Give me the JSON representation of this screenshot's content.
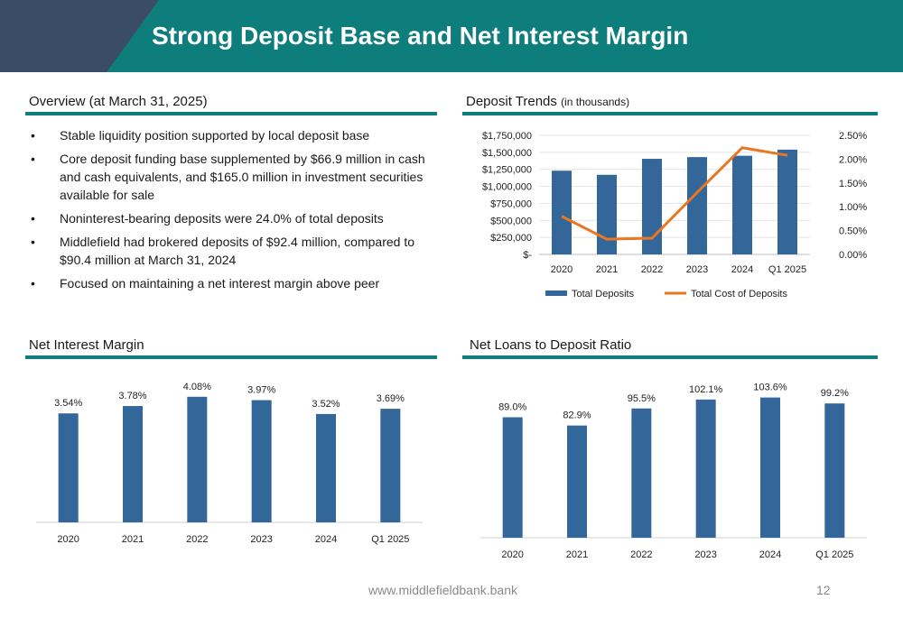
{
  "header": {
    "title": "Strong Deposit Base and Net Interest Margin"
  },
  "overview": {
    "title": "Overview (at March 31, 2025)",
    "bullets": [
      "Stable liquidity position supported by local deposit base",
      "Core deposit funding base supplemented by $66.9 million in cash and cash equivalents, and $165.0 million in investment securities available for sale",
      "Noninterest-bearing deposits were 24.0% of total deposits",
      "Middlefield had brokered deposits of $92.4 million, compared to $90.4 million at March 31, 2024",
      "Focused on maintaining a net interest margin above peer"
    ]
  },
  "colors": {
    "accent": "#0e7e7c",
    "bar": "#336699",
    "line": "#e87722",
    "corner": "#3b4d66"
  },
  "chart_data": [
    {
      "id": "deposit-trends",
      "type": "bar",
      "title": "Deposit Trends",
      "subtitle": "(in thousands)",
      "categories": [
        "2020",
        "2021",
        "2022",
        "2023",
        "2024",
        "Q1 2025"
      ],
      "series": [
        {
          "name": "Total Deposits",
          "type": "bar",
          "axis": "left",
          "values": [
            1230000,
            1170000,
            1405000,
            1430000,
            1450000,
            1540000
          ]
        },
        {
          "name": "Total Cost of Deposits",
          "type": "line",
          "axis": "right",
          "values": [
            0.8,
            0.32,
            0.34,
            1.3,
            2.24,
            2.08
          ]
        }
      ],
      "ylim": [
        0,
        1750000
      ],
      "y_ticks": [
        "$-",
        "$250,000",
        "$500,000",
        "$750,000",
        "$1,000,000",
        "$1,250,000",
        "$1,500,000",
        "$1,750,000"
      ],
      "y2lim": [
        0,
        2.5
      ],
      "y2_ticks": [
        "0.00%",
        "0.50%",
        "1.00%",
        "1.50%",
        "2.00%",
        "2.50%"
      ],
      "grid": true,
      "legend": "bottom"
    },
    {
      "id": "net-interest-margin",
      "type": "bar",
      "title": "Net Interest Margin",
      "categories": [
        "2020",
        "2021",
        "2022",
        "2023",
        "2024",
        "Q1 2025"
      ],
      "values": [
        3.54,
        3.78,
        4.08,
        3.97,
        3.52,
        3.69
      ],
      "labels": [
        "3.54%",
        "3.78%",
        "4.08%",
        "3.97%",
        "3.52%",
        "3.69%"
      ],
      "ylim": [
        0,
        4.25
      ]
    },
    {
      "id": "net-loans-to-deposit",
      "type": "bar",
      "title": "Net Loans to Deposit Ratio",
      "categories": [
        "2020",
        "2021",
        "2022",
        "2023",
        "2024",
        "Q1 2025"
      ],
      "values": [
        89.0,
        82.9,
        95.5,
        102.1,
        103.6,
        99.2
      ],
      "labels": [
        "89.0%",
        "82.9%",
        "95.5%",
        "102.1%",
        "103.6%",
        "99.2%"
      ],
      "ylim": [
        0,
        108
      ]
    }
  ],
  "footer": {
    "url": "www.middlefieldbank.bank",
    "page": "12"
  }
}
